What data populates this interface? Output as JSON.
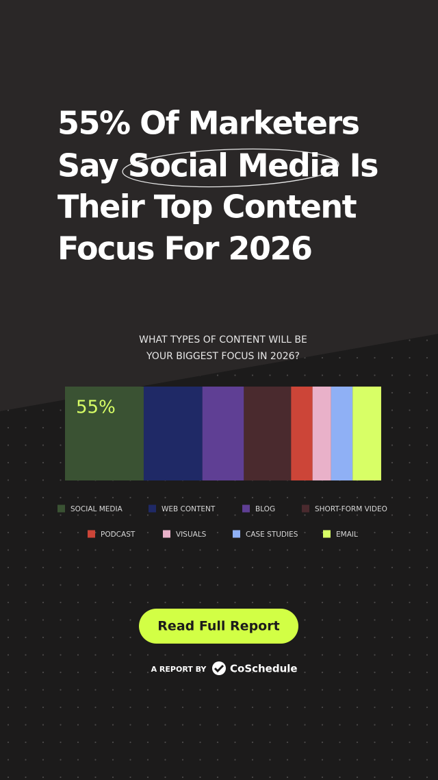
{
  "header": {
    "title_lines": [
      "55% Of Marketers",
      "Say Social Media Is",
      "Their Top Content",
      "Focus For 2026"
    ]
  },
  "chart_data": {
    "type": "bar",
    "orientation": "horizontal",
    "stacked": true,
    "title_lines": [
      "WHAT TYPES OF CONTENT WILL BE",
      "YOUR BIGGEST FOCUS IN 2026?"
    ],
    "series": [
      {
        "name": "SOCIAL MEDIA",
        "color": "#3a5233",
        "values": [
          55
        ],
        "value_labels": [
          "55%"
        ]
      },
      {
        "name": "WEB CONTENT",
        "color": "#1f2966",
        "values": [
          41
        ]
      },
      {
        "name": "BLOG",
        "color": "#5f3f94",
        "values": [
          29
        ]
      },
      {
        "name": "SHORT-FORM VIDEO",
        "color": "#4a2a2e",
        "values": [
          33
        ]
      },
      {
        "name": "PODCAST",
        "color": "#cc4538",
        "values": [
          15
        ]
      },
      {
        "name": "VISUALS",
        "color": "#e9b1c9",
        "values": [
          13
        ]
      },
      {
        "name": "CASE STUDIES",
        "color": "#8fb0f5",
        "values": [
          15
        ]
      },
      {
        "name": "EMAIL",
        "color": "#d8ff66",
        "values": [
          20
        ]
      }
    ],
    "value_label_color": "#d8ff66",
    "legend": "bottom"
  },
  "button": {
    "label": "Read Full Report"
  },
  "footer": {
    "prefix": "A REPORT BY",
    "brand": "CoSchedule"
  }
}
